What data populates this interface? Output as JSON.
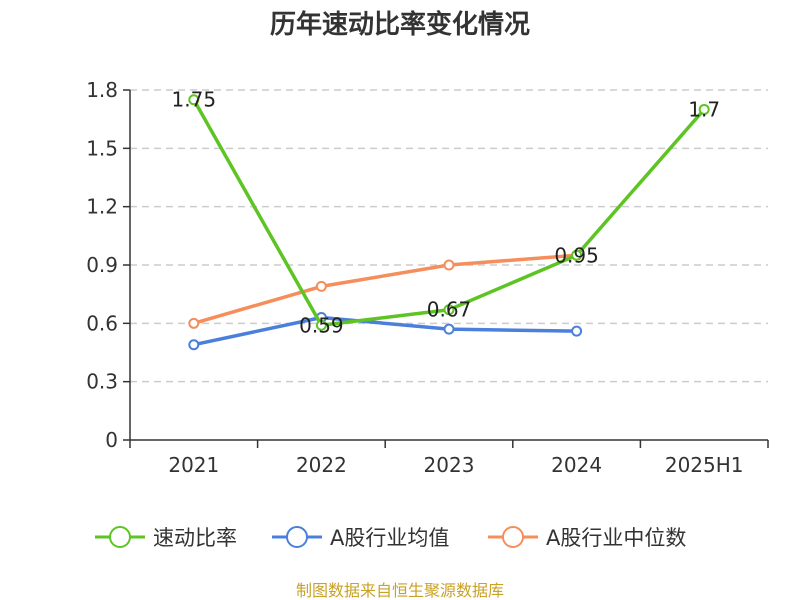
{
  "chart_data": {
    "type": "line",
    "title": "历年速动比率变化情况",
    "categories": [
      "2021",
      "2022",
      "2023",
      "2024",
      "2025H1"
    ],
    "yticks": [
      "0",
      "0.3",
      "0.6",
      "0.9",
      "1.2",
      "1.5",
      "1.8"
    ],
    "ylim": [
      0,
      1.8
    ],
    "grid": true,
    "legend_position": "bottom",
    "series": [
      {
        "name": "速动比率",
        "color": "#5ec424",
        "values": [
          1.75,
          0.59,
          0.67,
          0.95,
          1.7
        ],
        "labels": [
          "1.75",
          "0.59",
          "0.67",
          "0.95",
          "1.7"
        ]
      },
      {
        "name": "A股行业均值",
        "color": "#4b7fdc",
        "values": [
          0.49,
          0.63,
          0.57,
          0.56,
          null
        ]
      },
      {
        "name": "A股行业中位数",
        "color": "#f58e5a",
        "values": [
          0.6,
          0.79,
          0.9,
          0.95,
          null
        ]
      }
    ]
  },
  "source": "制图数据来自恒生聚源数据库"
}
